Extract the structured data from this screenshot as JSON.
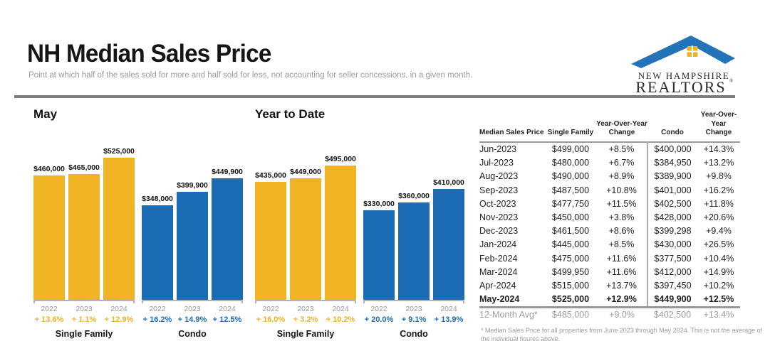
{
  "header": {
    "title": "NH Median Sales Price",
    "subtitle": "Point at which half of the sales sold for more and half sold for less, not accounting for seller concessions, in a given month."
  },
  "logo": {
    "line1": "NEW HAMPSHIRE",
    "line2": "REALTORS",
    "registered": "®"
  },
  "colors": {
    "gold": "#F0B323",
    "blue": "#1B6CB5",
    "logo_roof_blue": "#2273B8",
    "logo_window_gold": "#F0B323",
    "gray_text": "#9a9a9a",
    "divider_gray": "#7c7c7c"
  },
  "chart_data": [
    {
      "type": "bar",
      "title": "May",
      "unit": "USD",
      "ylim": [
        0,
        525000
      ],
      "groups": [
        {
          "label": "Single Family",
          "color": "#F0B323",
          "bars": [
            {
              "year": "2022",
              "value": 460000,
              "display": "$460,000",
              "yoy": "+ 13.6%"
            },
            {
              "year": "2023",
              "value": 465000,
              "display": "$465,000",
              "yoy": "+ 1.1%"
            },
            {
              "year": "2024",
              "value": 525000,
              "display": "$525,000",
              "yoy": "+ 12.9%"
            }
          ]
        },
        {
          "label": "Condo",
          "color": "#1B6CB5",
          "bars": [
            {
              "year": "2022",
              "value": 348000,
              "display": "$348,000",
              "yoy": "+ 16.2%"
            },
            {
              "year": "2023",
              "value": 399900,
              "display": "$399,900",
              "yoy": "+ 14.9%"
            },
            {
              "year": "2024",
              "value": 449900,
              "display": "$449,900",
              "yoy": "+ 12.5%"
            }
          ]
        }
      ]
    },
    {
      "type": "bar",
      "title": "Year to Date",
      "unit": "USD",
      "ylim": [
        0,
        525000
      ],
      "groups": [
        {
          "label": "Single Family",
          "color": "#F0B323",
          "bars": [
            {
              "year": "2022",
              "value": 435000,
              "display": "$435,000",
              "yoy": "+ 16.0%"
            },
            {
              "year": "2023",
              "value": 449000,
              "display": "$449,000",
              "yoy": "+ 3.2%"
            },
            {
              "year": "2024",
              "value": 495000,
              "display": "$495,000",
              "yoy": "+ 10.2%"
            }
          ]
        },
        {
          "label": "Condo",
          "color": "#1B6CB5",
          "bars": [
            {
              "year": "2022",
              "value": 330000,
              "display": "$330,000",
              "yoy": "+ 20.0%"
            },
            {
              "year": "2023",
              "value": 360000,
              "display": "$360,000",
              "yoy": "+ 9.1%"
            },
            {
              "year": "2024",
              "value": 410000,
              "display": "$410,000",
              "yoy": "+ 13.9%"
            }
          ]
        }
      ]
    }
  ],
  "table": {
    "headers": [
      "Median Sales Price",
      "Single Family",
      "Year-Over-Year Change",
      "Condo",
      "Year-Over-Year Change"
    ],
    "rows": [
      {
        "month": "Jun-2023",
        "sf": "$499,000",
        "sf_yoy": "+8.5%",
        "condo": "$400,000",
        "condo_yoy": "+14.3%"
      },
      {
        "month": "Jul-2023",
        "sf": "$480,000",
        "sf_yoy": "+6.7%",
        "condo": "$384,950",
        "condo_yoy": "+13.2%"
      },
      {
        "month": "Aug-2023",
        "sf": "$490,000",
        "sf_yoy": "+8.9%",
        "condo": "$389,900",
        "condo_yoy": "+9.8%"
      },
      {
        "month": "Sep-2023",
        "sf": "$487,500",
        "sf_yoy": "+10.8%",
        "condo": "$401,000",
        "condo_yoy": "+16.2%"
      },
      {
        "month": "Oct-2023",
        "sf": "$477,750",
        "sf_yoy": "+11.5%",
        "condo": "$402,500",
        "condo_yoy": "+11.8%"
      },
      {
        "month": "Nov-2023",
        "sf": "$450,000",
        "sf_yoy": "+3.8%",
        "condo": "$428,000",
        "condo_yoy": "+20.6%"
      },
      {
        "month": "Dec-2023",
        "sf": "$461,500",
        "sf_yoy": "+8.6%",
        "condo": "$399,298",
        "condo_yoy": "+9.4%"
      },
      {
        "month": "Jan-2024",
        "sf": "$445,000",
        "sf_yoy": "+8.5%",
        "condo": "$430,000",
        "condo_yoy": "+26.5%"
      },
      {
        "month": "Feb-2024",
        "sf": "$475,000",
        "sf_yoy": "+11.6%",
        "condo": "$377,500",
        "condo_yoy": "+10.4%"
      },
      {
        "month": "Mar-2024",
        "sf": "$499,950",
        "sf_yoy": "+11.6%",
        "condo": "$412,000",
        "condo_yoy": "+14.9%"
      },
      {
        "month": "Apr-2024",
        "sf": "$515,000",
        "sf_yoy": "+13.7%",
        "condo": "$397,450",
        "condo_yoy": "+10.2%"
      },
      {
        "month": "May-2024",
        "sf": "$525,000",
        "sf_yoy": "+12.9%",
        "condo": "$449,900",
        "condo_yoy": "+12.5%"
      }
    ],
    "avg_row": {
      "month": "12-Month Avg*",
      "sf": "$485,000",
      "sf_yoy": "+9.0%",
      "condo": "$402,500",
      "condo_yoy": "+13.4%"
    },
    "footnote": "* Median Sales Price for all properties from June 2023 through May 2024. This is not the average of the individual figures above."
  }
}
